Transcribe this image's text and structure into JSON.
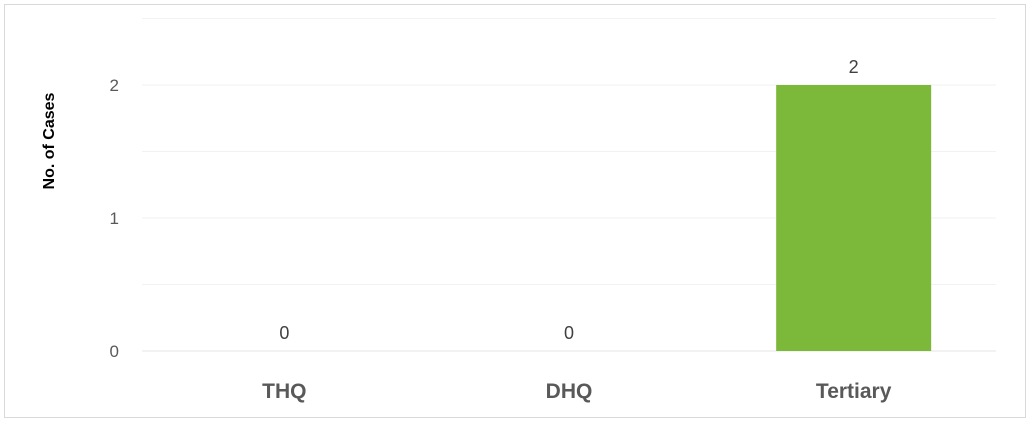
{
  "chart_data": {
    "type": "bar",
    "categories": [
      "THQ",
      "DHQ",
      "Tertiary"
    ],
    "values": [
      0,
      0,
      2
    ],
    "data_labels": [
      "0",
      "0",
      "2"
    ],
    "title": "",
    "xlabel": "",
    "ylabel": "No. of Cases",
    "ylim": [
      0,
      2.5
    ],
    "yticks": [
      0,
      1,
      2
    ],
    "ytick_labels": [
      "0",
      "1",
      "2"
    ],
    "gridlines": true,
    "legend": "none",
    "colors": {
      "bar": "#7cb83a",
      "gridline": "#f2f2f2",
      "tick_text": "#595959",
      "axis_title": "#000000",
      "data_label": "#404040"
    }
  }
}
